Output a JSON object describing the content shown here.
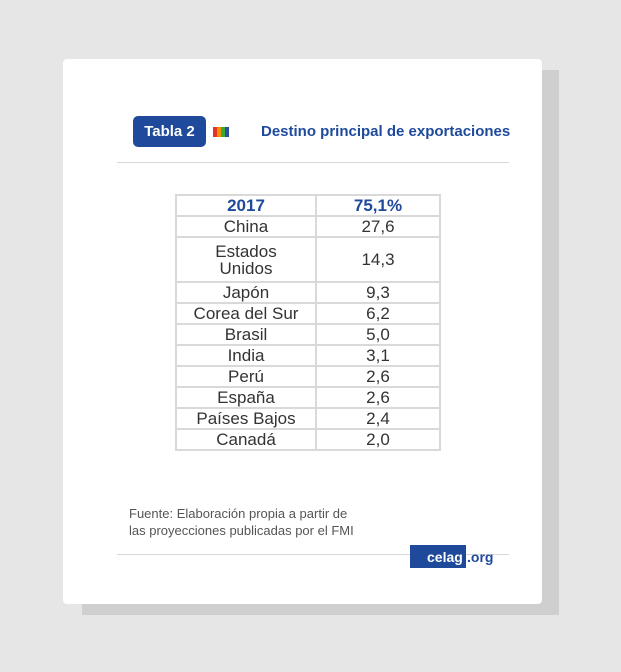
{
  "header": {
    "badge": "Tabla 2",
    "title": "Destino principal de exportaciones",
    "stripe_colors": [
      "#e6332a",
      "#f39200",
      "#3aaa35",
      "#2c4f9e"
    ]
  },
  "table": {
    "header": {
      "year": "2017",
      "total": "75,1%"
    },
    "rows": [
      {
        "country": "China",
        "value": "27,6"
      },
      {
        "country": "Estados Unidos",
        "value": "14,3"
      },
      {
        "country": "Japón",
        "value": "9,3"
      },
      {
        "country": "Corea del Sur",
        "value": "6,2"
      },
      {
        "country": "Brasil",
        "value": "5,0"
      },
      {
        "country": "India",
        "value": "3,1"
      },
      {
        "country": "Perú",
        "value": "2,6"
      },
      {
        "country": "España",
        "value": "2,6"
      },
      {
        "country": "Países Bajos",
        "value": "2,4"
      },
      {
        "country": "Canadá",
        "value": "2,0"
      }
    ]
  },
  "footer": {
    "source_line1": "Fuente: Elaboración propia a partir de",
    "source_line2": "las proyecciones publicadas por el FMI",
    "logo_main": "celag",
    "logo_ext": ".org"
  },
  "colors": {
    "brand": "#1f4a9c",
    "background": "#e6e6e6"
  }
}
